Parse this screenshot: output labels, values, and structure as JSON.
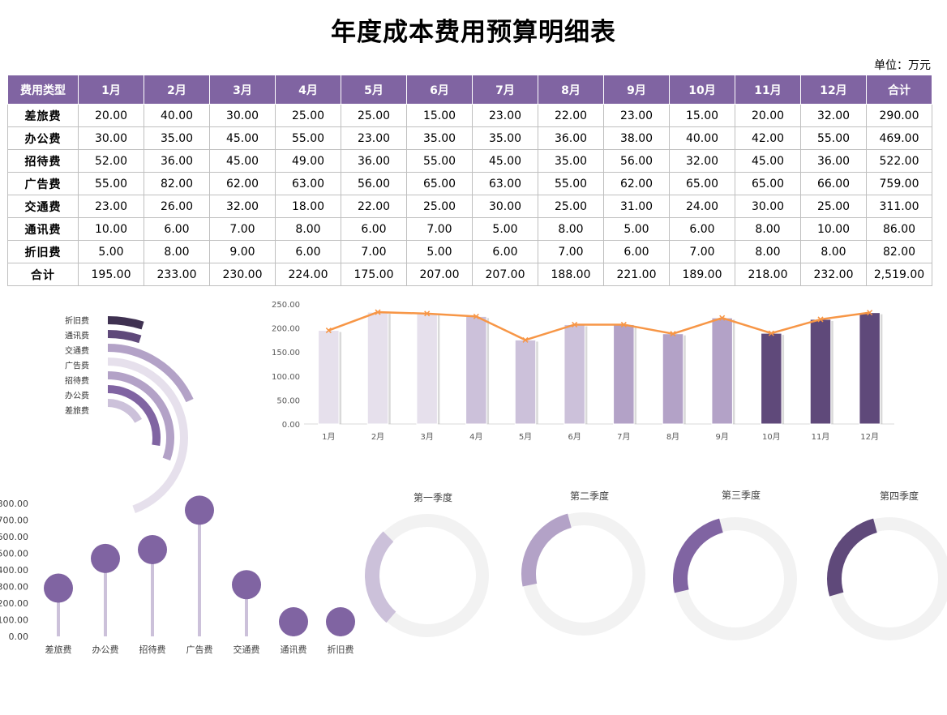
{
  "title": "年度成本费用预算明细表",
  "unit": "单位：万元",
  "table": {
    "header": [
      "费用类型",
      "1月",
      "2月",
      "3月",
      "4月",
      "5月",
      "6月",
      "7月",
      "8月",
      "9月",
      "10月",
      "11月",
      "12月",
      "合计"
    ],
    "rows": [
      {
        "label": "差旅费",
        "values": [
          "20.00",
          "40.00",
          "30.00",
          "25.00",
          "25.00",
          "15.00",
          "23.00",
          "22.00",
          "23.00",
          "15.00",
          "20.00",
          "32.00",
          "290.00"
        ]
      },
      {
        "label": "办公费",
        "values": [
          "30.00",
          "35.00",
          "45.00",
          "55.00",
          "23.00",
          "35.00",
          "35.00",
          "36.00",
          "38.00",
          "40.00",
          "42.00",
          "55.00",
          "469.00"
        ]
      },
      {
        "label": "招待费",
        "values": [
          "52.00",
          "36.00",
          "45.00",
          "49.00",
          "36.00",
          "55.00",
          "45.00",
          "35.00",
          "56.00",
          "32.00",
          "45.00",
          "36.00",
          "522.00"
        ]
      },
      {
        "label": "广告费",
        "values": [
          "55.00",
          "82.00",
          "62.00",
          "63.00",
          "56.00",
          "65.00",
          "63.00",
          "55.00",
          "62.00",
          "65.00",
          "65.00",
          "66.00",
          "759.00"
        ]
      },
      {
        "label": "交通费",
        "values": [
          "23.00",
          "26.00",
          "32.00",
          "18.00",
          "22.00",
          "25.00",
          "30.00",
          "25.00",
          "31.00",
          "24.00",
          "30.00",
          "25.00",
          "311.00"
        ]
      },
      {
        "label": "通讯费",
        "values": [
          "10.00",
          "6.00",
          "7.00",
          "8.00",
          "6.00",
          "7.00",
          "5.00",
          "8.00",
          "5.00",
          "6.00",
          "8.00",
          "10.00",
          "86.00"
        ]
      },
      {
        "label": "折旧费",
        "values": [
          "5.00",
          "8.00",
          "9.00",
          "6.00",
          "7.00",
          "5.00",
          "6.00",
          "7.00",
          "6.00",
          "7.00",
          "8.00",
          "8.00",
          "82.00"
        ]
      },
      {
        "label": "合计",
        "values": [
          "195.00",
          "233.00",
          "230.00",
          "224.00",
          "175.00",
          "207.00",
          "207.00",
          "188.00",
          "221.00",
          "189.00",
          "218.00",
          "232.00",
          "2,519.00"
        ]
      }
    ]
  },
  "chart_data": [
    {
      "type": "radial_bar",
      "title": "",
      "categories": [
        "折旧费",
        "通讯费",
        "交通费",
        "广告费",
        "招待费",
        "办公费",
        "差旅费"
      ],
      "values": [
        82,
        86,
        311,
        759,
        522,
        469,
        290
      ],
      "colors": [
        "#3f3151",
        "#5f497a",
        "#b3a2c7",
        "#e6e0ec",
        "#b3a2c7",
        "#8064a2",
        "#ccc1da"
      ]
    },
    {
      "type": "bar",
      "categories": [
        "1月",
        "2月",
        "3月",
        "4月",
        "5月",
        "6月",
        "7月",
        "8月",
        "9月",
        "10月",
        "11月",
        "12月"
      ],
      "series": [
        {
          "name": "合计",
          "type": "bar",
          "values": [
            195,
            233,
            230,
            224,
            175,
            207,
            207,
            188,
            221,
            189,
            218,
            232
          ]
        },
        {
          "name": "合计",
          "type": "line",
          "values": [
            195,
            233,
            230,
            224,
            175,
            207,
            207,
            188,
            221,
            189,
            218,
            232
          ],
          "color": "#f79646"
        }
      ],
      "bar_colors": [
        "#e6e0ec",
        "#e6e0ec",
        "#e6e0ec",
        "#ccc1da",
        "#ccc1da",
        "#ccc1da",
        "#b3a2c7",
        "#b3a2c7",
        "#b3a2c7",
        "#5f497a",
        "#5f497a",
        "#5f497a"
      ],
      "ylim": [
        0,
        250
      ],
      "yticks": [
        "0.00",
        "50.00",
        "100.00",
        "150.00",
        "200.00",
        "250.00"
      ],
      "legend": "none"
    },
    {
      "type": "scatter",
      "subtype": "lollipop",
      "categories": [
        "差旅费",
        "办公费",
        "招待费",
        "广告费",
        "交通费",
        "通讯费",
        "折旧费"
      ],
      "values": [
        290,
        469,
        522,
        759,
        311,
        86,
        82
      ],
      "ylim": [
        0,
        800
      ],
      "yticks": [
        "0.00",
        "100.00",
        "200.00",
        "300.00",
        "400.00",
        "500.00",
        "600.00",
        "700.00",
        "800.00"
      ],
      "stem_color": "#ccc1da",
      "dot_color": "#8064a2"
    },
    {
      "type": "pie",
      "subtype": "doughnut",
      "charts": [
        {
          "title": "第一季度",
          "value": 658,
          "total": 2519,
          "color": "#ccc1da"
        },
        {
          "title": "第二季度",
          "value": 606,
          "total": 2519,
          "color": "#b3a2c7"
        },
        {
          "title": "第三季度",
          "value": 616,
          "total": 2519,
          "color": "#8064a2"
        },
        {
          "title": "第四季度",
          "value": 639,
          "total": 2519,
          "color": "#5f497a"
        }
      ],
      "remainder_color": "#f2f2f2"
    }
  ]
}
